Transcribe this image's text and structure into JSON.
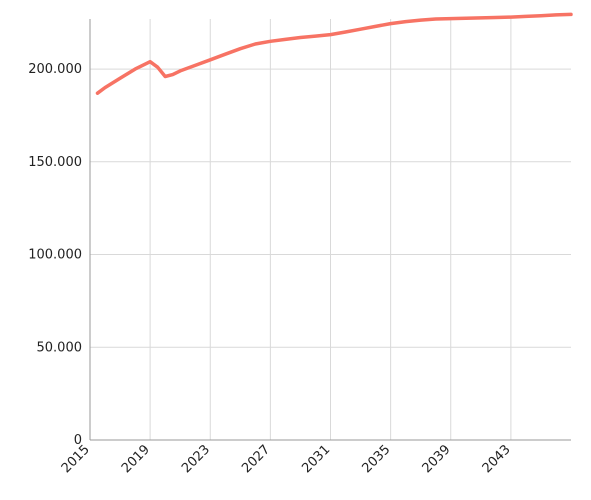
{
  "chart_data": {
    "type": "line",
    "title": "",
    "xlabel": "",
    "ylabel": "",
    "x_tick_labels": [
      "2015",
      "2019",
      "2023",
      "2027",
      "2031",
      "2035",
      "2039",
      "2043"
    ],
    "y_tick_labels": [
      "0",
      "50.000",
      "100.000",
      "150.000",
      "200.000"
    ],
    "x_ticks": [
      2015,
      2019,
      2023,
      2027,
      2031,
      2035,
      2039,
      2043
    ],
    "y_ticks": [
      0,
      50000,
      100000,
      150000,
      200000
    ],
    "xlim": [
      2015,
      2047
    ],
    "ylim": [
      0,
      227000
    ],
    "grid": true,
    "legend": "none",
    "series": [
      {
        "color": "#f77364",
        "x": [
          2015.5,
          2016,
          2017,
          2018,
          2019,
          2019.5,
          2020,
          2020.5,
          2021,
          2022,
          2023,
          2024,
          2025,
          2026,
          2027,
          2028,
          2029,
          2030,
          2031,
          2032,
          2033,
          2034,
          2035,
          2036,
          2037,
          2038,
          2039,
          2040,
          2041,
          2042,
          2043,
          2044,
          2045,
          2046,
          2047
        ],
        "y": [
          187000,
          190000,
          195000,
          200000,
          204000,
          201000,
          196000,
          197000,
          199000,
          202000,
          205000,
          208000,
          211000,
          213500,
          215000,
          216000,
          217000,
          217800,
          218600,
          220000,
          221500,
          223000,
          224500,
          225600,
          226400,
          227000,
          227200,
          227400,
          227600,
          227800,
          228000,
          228400,
          228800,
          229200,
          229500
        ]
      }
    ]
  }
}
